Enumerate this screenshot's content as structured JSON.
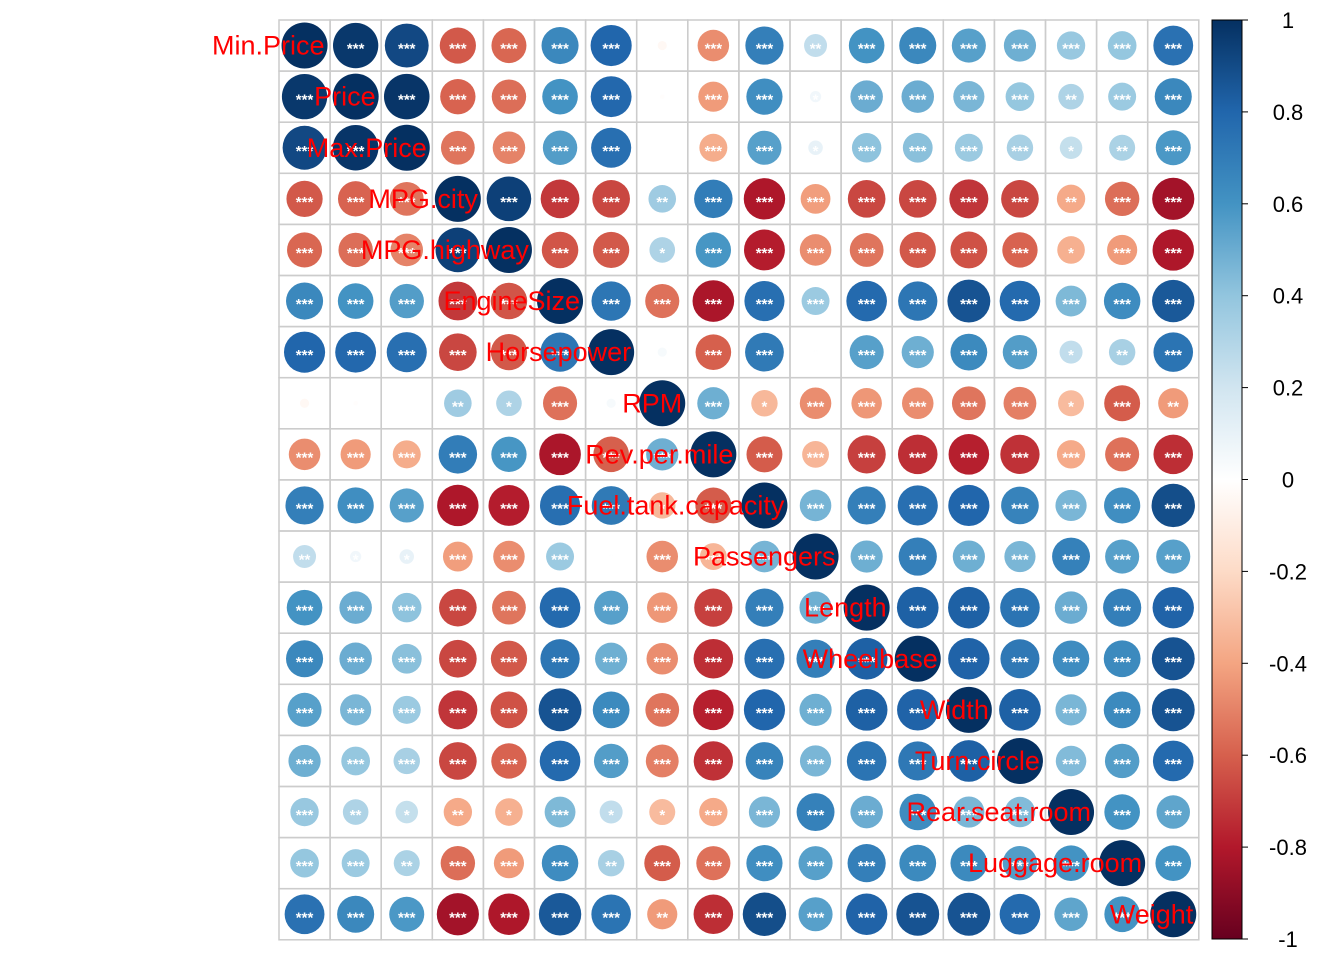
{
  "chart_data": {
    "type": "heatmap",
    "variables": [
      "Min.Price",
      "Price",
      "Max.Price",
      "MPG.city",
      "MPG.highway",
      "EngineSize",
      "Horsepower",
      "RPM",
      "Rev.per.mile",
      "Fuel.tank.capacity",
      "Passengers",
      "Length",
      "Wheelbase",
      "Width",
      "Turn.circle",
      "Rear.seat.room",
      "Luggage.room",
      "Weight"
    ],
    "matrix": [
      [
        1.0,
        0.97,
        0.91,
        -0.62,
        -0.58,
        0.65,
        0.8,
        -0.04,
        -0.47,
        0.69,
        0.25,
        0.6,
        0.65,
        0.55,
        0.49,
        0.38,
        0.39,
        0.75
      ],
      [
        0.97,
        1.0,
        0.98,
        -0.59,
        -0.56,
        0.6,
        0.79,
        -0.01,
        -0.43,
        0.62,
        0.06,
        0.5,
        0.5,
        0.46,
        0.39,
        0.31,
        0.37,
        0.65
      ],
      [
        0.91,
        0.98,
        1.0,
        -0.54,
        -0.5,
        0.56,
        0.76,
        0.0,
        -0.37,
        0.55,
        0.1,
        0.41,
        0.42,
        0.37,
        0.33,
        0.24,
        0.32,
        0.58
      ],
      [
        -0.62,
        -0.59,
        -0.54,
        1.0,
        0.94,
        -0.71,
        -0.67,
        0.36,
        0.7,
        -0.81,
        -0.42,
        -0.67,
        -0.67,
        -0.72,
        -0.67,
        -0.38,
        -0.56,
        -0.84
      ],
      [
        -0.58,
        -0.56,
        -0.5,
        0.94,
        1.0,
        -0.63,
        -0.62,
        0.31,
        0.59,
        -0.79,
        -0.47,
        -0.54,
        -0.62,
        -0.64,
        -0.59,
        -0.36,
        -0.43,
        -0.81
      ],
      [
        0.65,
        0.6,
        0.56,
        -0.71,
        -0.63,
        1.0,
        0.73,
        -0.55,
        -0.82,
        0.76,
        0.37,
        0.78,
        0.73,
        0.87,
        0.78,
        0.45,
        0.63,
        0.85
      ],
      [
        0.8,
        0.79,
        0.76,
        -0.67,
        -0.62,
        0.73,
        1.0,
        0.04,
        -0.6,
        0.71,
        0.01,
        0.55,
        0.49,
        0.64,
        0.56,
        0.25,
        0.33,
        0.74
      ],
      [
        -0.04,
        -0.01,
        0.0,
        0.36,
        0.31,
        -0.55,
        0.04,
        1.0,
        0.49,
        -0.33,
        -0.47,
        -0.44,
        -0.47,
        -0.54,
        -0.51,
        -0.32,
        -0.61,
        -0.43
      ],
      [
        -0.47,
        -0.43,
        -0.37,
        0.7,
        0.59,
        -0.82,
        -0.6,
        0.49,
        1.0,
        -0.61,
        -0.34,
        -0.69,
        -0.74,
        -0.78,
        -0.73,
        -0.38,
        -0.55,
        -0.74
      ],
      [
        0.69,
        0.62,
        0.55,
        -0.81,
        -0.79,
        0.76,
        0.71,
        -0.33,
        -0.61,
        1.0,
        0.47,
        0.69,
        0.76,
        0.8,
        0.67,
        0.46,
        0.62,
        0.89
      ],
      [
        0.25,
        0.06,
        0.1,
        -0.42,
        -0.47,
        0.37,
        0.01,
        -0.47,
        -0.34,
        0.47,
        1.0,
        0.49,
        0.69,
        0.49,
        0.46,
        0.68,
        0.55,
        0.55
      ],
      [
        0.6,
        0.5,
        0.41,
        -0.67,
        -0.54,
        0.78,
        0.55,
        -0.44,
        -0.69,
        0.69,
        0.49,
        1.0,
        0.82,
        0.82,
        0.74,
        0.5,
        0.69,
        0.81
      ],
      [
        0.65,
        0.5,
        0.42,
        -0.67,
        -0.62,
        0.73,
        0.49,
        -0.47,
        -0.74,
        0.76,
        0.69,
        0.82,
        1.0,
        0.81,
        0.72,
        0.63,
        0.64,
        0.87
      ],
      [
        0.55,
        0.46,
        0.37,
        -0.72,
        -0.64,
        0.87,
        0.64,
        -0.54,
        -0.78,
        0.8,
        0.49,
        0.82,
        0.81,
        1.0,
        0.82,
        0.46,
        0.64,
        0.87
      ],
      [
        0.49,
        0.39,
        0.33,
        -0.67,
        -0.59,
        0.78,
        0.56,
        -0.51,
        -0.73,
        0.67,
        0.46,
        0.74,
        0.72,
        0.82,
        1.0,
        0.44,
        0.56,
        0.78
      ],
      [
        0.38,
        0.31,
        0.24,
        -0.38,
        -0.36,
        0.45,
        0.25,
        -0.32,
        -0.38,
        0.46,
        0.68,
        0.5,
        0.63,
        0.46,
        0.44,
        1.0,
        0.6,
        0.53
      ],
      [
        0.39,
        0.37,
        0.32,
        -0.56,
        -0.43,
        0.63,
        0.33,
        -0.61,
        -0.55,
        0.62,
        0.55,
        0.69,
        0.64,
        0.64,
        0.56,
        0.6,
        1.0,
        0.6
      ],
      [
        0.75,
        0.65,
        0.58,
        -0.84,
        -0.81,
        0.85,
        0.74,
        -0.43,
        -0.74,
        0.89,
        0.55,
        0.81,
        0.87,
        0.87,
        0.78,
        0.53,
        0.6,
        1.0
      ]
    ],
    "significance": [
      [
        "",
        "***",
        "***",
        "***",
        "***",
        "***",
        "***",
        "",
        "***",
        "***",
        "**",
        "***",
        "***",
        "***",
        "***",
        "***",
        "***",
        "***"
      ],
      [
        "***",
        "",
        "***",
        "***",
        "***",
        "***",
        "***",
        "",
        "***",
        "***",
        "*",
        "***",
        "***",
        "***",
        "***",
        "**",
        "***",
        "***"
      ],
      [
        "***",
        "***",
        "",
        "***",
        "***",
        "***",
        "***",
        "",
        "***",
        "***",
        "*",
        "***",
        "***",
        "***",
        "***",
        "*",
        "**",
        "***"
      ],
      [
        "***",
        "***",
        "***",
        "",
        "***",
        "***",
        "***",
        "**",
        "***",
        "***",
        "***",
        "***",
        "***",
        "***",
        "***",
        "**",
        "***",
        "***"
      ],
      [
        "***",
        "***",
        "***",
        "***",
        "",
        "***",
        "***",
        "*",
        "***",
        "***",
        "***",
        "***",
        "***",
        "***",
        "***",
        "*",
        "***",
        "***"
      ],
      [
        "***",
        "***",
        "***",
        "***",
        "***",
        "",
        "***",
        "***",
        "***",
        "***",
        "***",
        "***",
        "***",
        "***",
        "***",
        "***",
        "***",
        "***"
      ],
      [
        "***",
        "***",
        "***",
        "***",
        "***",
        "***",
        "",
        "",
        "***",
        "***",
        "*",
        "***",
        "***",
        "***",
        "***",
        "*",
        "**",
        "***"
      ],
      [
        "",
        "",
        "",
        "**",
        "*",
        "***",
        "",
        "",
        "***",
        "*",
        "***",
        "***",
        "***",
        "***",
        "***",
        "*",
        "***",
        "**"
      ],
      [
        "***",
        "***",
        "***",
        "***",
        "***",
        "***",
        "***",
        "***",
        "",
        "***",
        "***",
        "***",
        "***",
        "***",
        "***",
        "***",
        "***",
        "***"
      ],
      [
        "***",
        "***",
        "***",
        "***",
        "***",
        "***",
        "***",
        "*",
        "***",
        "",
        "***",
        "***",
        "***",
        "***",
        "***",
        "***",
        "***",
        "***"
      ],
      [
        "**",
        "*",
        "*",
        "***",
        "***",
        "***",
        "*",
        "***",
        "***",
        "***",
        "",
        "***",
        "***",
        "***",
        "***",
        "***",
        "***",
        "***"
      ],
      [
        "***",
        "***",
        "***",
        "***",
        "***",
        "***",
        "***",
        "***",
        "***",
        "***",
        "***",
        "",
        "***",
        "***",
        "***",
        "***",
        "***",
        "***"
      ],
      [
        "***",
        "***",
        "***",
        "***",
        "***",
        "***",
        "***",
        "***",
        "***",
        "***",
        "***",
        "***",
        "",
        "***",
        "***",
        "***",
        "***",
        "***"
      ],
      [
        "***",
        "***",
        "***",
        "***",
        "***",
        "***",
        "***",
        "***",
        "***",
        "***",
        "***",
        "***",
        "***",
        "",
        "***",
        "***",
        "***",
        "***"
      ],
      [
        "***",
        "***",
        "***",
        "***",
        "***",
        "***",
        "***",
        "***",
        "***",
        "***",
        "***",
        "***",
        "***",
        "***",
        "",
        "***",
        "***",
        "***"
      ],
      [
        "***",
        "**",
        "*",
        "**",
        "*",
        "***",
        "*",
        "*",
        "***",
        "***",
        "***",
        "***",
        "***",
        "***",
        "***",
        "",
        "***",
        "***"
      ],
      [
        "***",
        "***",
        "**",
        "***",
        "***",
        "***",
        "**",
        "***",
        "***",
        "***",
        "***",
        "***",
        "***",
        "***",
        "***",
        "***",
        "",
        "***"
      ],
      [
        "***",
        "***",
        "***",
        "***",
        "***",
        "***",
        "***",
        "**",
        "***",
        "***",
        "***",
        "***",
        "***",
        "***",
        "***",
        "***",
        "***",
        ""
      ]
    ],
    "colorbar": {
      "range": [
        -1,
        1
      ],
      "ticks": [
        "1",
        "0.8",
        "0.6",
        "0.4",
        "0.2",
        "0",
        "-0.2",
        "-0.4",
        "-0.6",
        "-0.8",
        "-1"
      ],
      "colors": [
        "#67001F",
        "#B2182B",
        "#D6604D",
        "#F4A582",
        "#FDDBC7",
        "#FFFFFF",
        "#D1E5F0",
        "#92C5DE",
        "#4393C3",
        "#2166AC",
        "#053061"
      ]
    },
    "grid": true,
    "label_color": "#FF0000"
  }
}
